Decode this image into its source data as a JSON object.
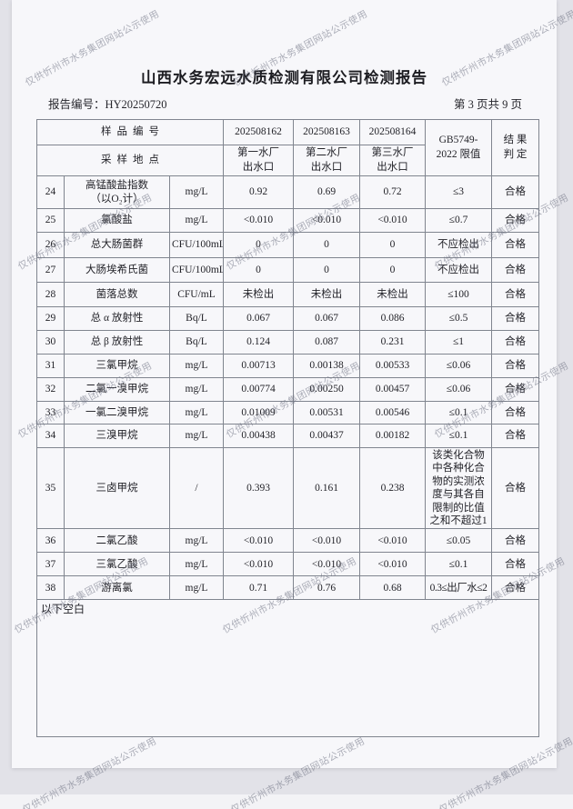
{
  "watermark": {
    "text": "仅供忻州市水务集团网站公示使用"
  },
  "page": {
    "title": "山西水务宏远水质检测有限公司检测报告",
    "report_no": "报告编号：HY20250720",
    "page_info": "第 3 页共 9 页"
  },
  "table": {
    "header": {
      "sample_no_label": "样品编号",
      "sample_site_label": "采样地点",
      "sample_ids": [
        "202508162",
        "202508163",
        "202508164"
      ],
      "sites": [
        {
          "l1": "第一水厂",
          "l2": "出水口"
        },
        {
          "l1": "第二水厂",
          "l2": "出水口"
        },
        {
          "l1": "第三水厂",
          "l2": "出水口"
        }
      ],
      "standard_l1": "GB5749-",
      "standard_l2": "2022 限值",
      "result_l1": "结 果",
      "result_l2": "判 定"
    },
    "rows": [
      {
        "no": "24",
        "name": "高锰酸盐指数\n（以O₂计）",
        "unit": "mg/L",
        "v1": "0.92",
        "v2": "0.69",
        "v3": "0.72",
        "limit": "≤3",
        "result": "合格"
      },
      {
        "no": "25",
        "name": "氯酸盐",
        "unit": "mg/L",
        "v1": "<0.010",
        "v2": "<0.010",
        "v3": "<0.010",
        "limit": "≤0.7",
        "result": "合格"
      },
      {
        "no": "26",
        "name": "总大肠菌群",
        "unit": "CFU/100mL",
        "v1": "0",
        "v2": "0",
        "v3": "0",
        "limit": "不应检出",
        "result": "合格"
      },
      {
        "no": "27",
        "name": "大肠埃希氏菌",
        "unit": "CFU/100mL",
        "v1": "0",
        "v2": "0",
        "v3": "0",
        "limit": "不应检出",
        "result": "合格"
      },
      {
        "no": "28",
        "name": "菌落总数",
        "unit": "CFU/mL",
        "v1": "未检出",
        "v2": "未检出",
        "v3": "未检出",
        "limit": "≤100",
        "result": "合格"
      },
      {
        "no": "29",
        "name": "总 α 放射性",
        "unit": "Bq/L",
        "v1": "0.067",
        "v2": "0.067",
        "v3": "0.086",
        "limit": "≤0.5",
        "result": "合格"
      },
      {
        "no": "30",
        "name": "总 β 放射性",
        "unit": "Bq/L",
        "v1": "0.124",
        "v2": "0.087",
        "v3": "0.231",
        "limit": "≤1",
        "result": "合格"
      },
      {
        "no": "31",
        "name": "三氯甲烷",
        "unit": "mg/L",
        "v1": "0.00713",
        "v2": "0.00138",
        "v3": "0.00533",
        "limit": "≤0.06",
        "result": "合格"
      },
      {
        "no": "32",
        "name": "二氯一溴甲烷",
        "unit": "mg/L",
        "v1": "0.00774",
        "v2": "0.00250",
        "v3": "0.00457",
        "limit": "≤0.06",
        "result": "合格"
      },
      {
        "no": "33",
        "name": "一氯二溴甲烷",
        "unit": "mg/L",
        "v1": "0.01009",
        "v2": "0.00531",
        "v3": "0.00546",
        "limit": "≤0.1",
        "result": "合格"
      },
      {
        "no": "34",
        "name": "三溴甲烷",
        "unit": "mg/L",
        "v1": "0.00438",
        "v2": "0.00437",
        "v3": "0.00182",
        "limit": "≤0.1",
        "result": "合格"
      },
      {
        "no": "35",
        "name": "三卤甲烷",
        "unit": "/",
        "v1": "0.393",
        "v2": "0.161",
        "v3": "0.238",
        "limit": "该类化合物中各种化合物的实测浓度与其各自限制的比值之和不超过1",
        "result": "合格"
      },
      {
        "no": "36",
        "name": "二氯乙酸",
        "unit": "mg/L",
        "v1": "<0.010",
        "v2": "<0.010",
        "v3": "<0.010",
        "limit": "≤0.05",
        "result": "合格"
      },
      {
        "no": "37",
        "name": "三氯乙酸",
        "unit": "mg/L",
        "v1": "<0.010",
        "v2": "<0.010",
        "v3": "<0.010",
        "limit": "≤0.1",
        "result": "合格"
      },
      {
        "no": "38",
        "name": "游离氯",
        "unit": "mg/L",
        "v1": "0.71",
        "v2": "0.76",
        "v3": "0.68",
        "limit": "0.3≤出厂水≤2",
        "result": "合格"
      }
    ],
    "blank_note": "以下空白"
  }
}
